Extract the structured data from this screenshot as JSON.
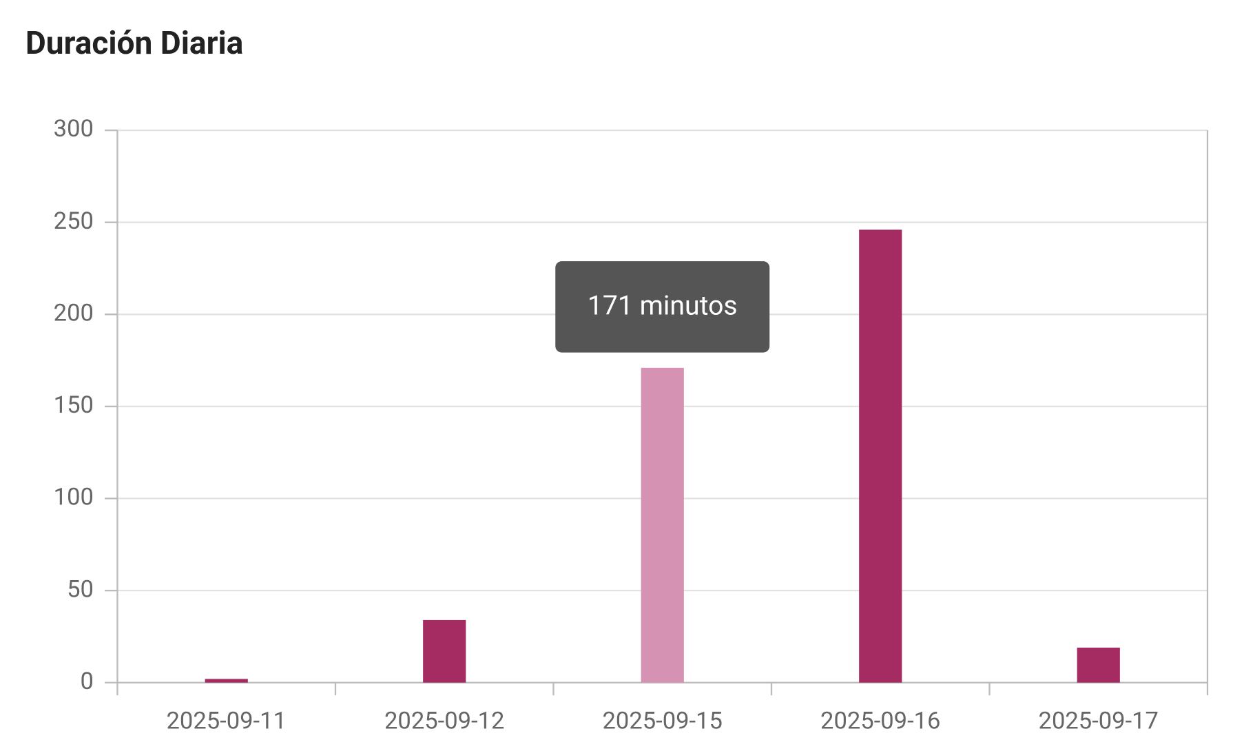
{
  "chart_data": {
    "type": "bar",
    "title": "Duración Diaria",
    "categories": [
      "2025-09-11",
      "2025-09-12",
      "2025-09-15",
      "2025-09-16",
      "2025-09-17"
    ],
    "values": [
      2,
      34,
      171,
      246,
      19
    ],
    "color": "#a52c63",
    "highlight_color": "#d692b2",
    "tooltip": "171 minutos",
    "ylim": [
      0,
      300
    ],
    "yticks": [
      0,
      50,
      100,
      150,
      200,
      250,
      300
    ],
    "grid": true
  }
}
